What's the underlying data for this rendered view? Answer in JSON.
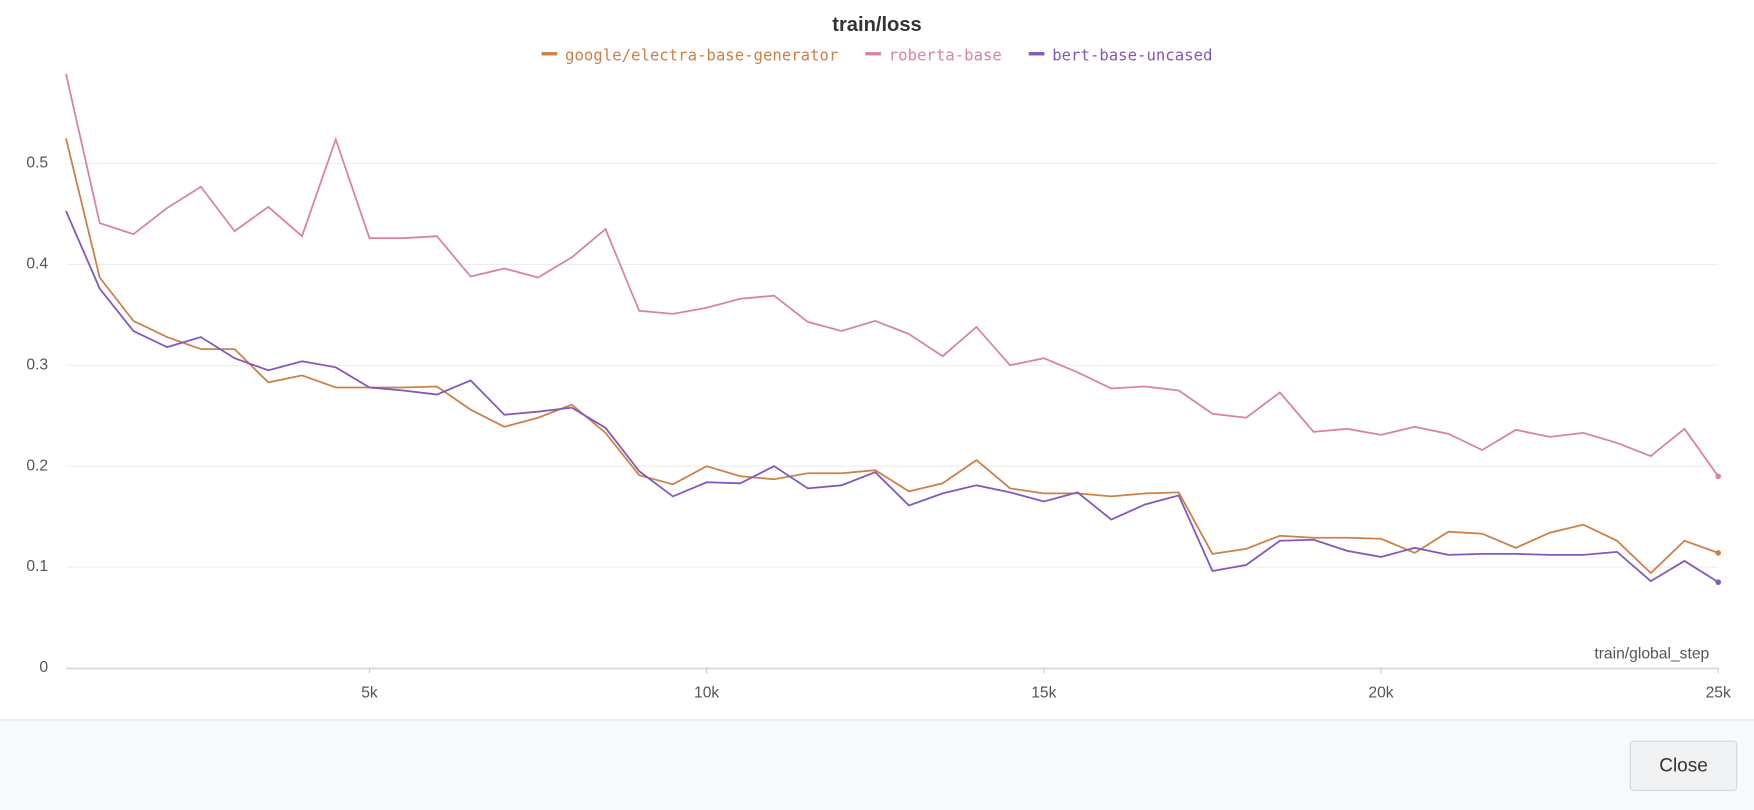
{
  "chart_data": {
    "type": "line",
    "title": "train/loss",
    "x_label": "train/global_step",
    "x": [
      500,
      1000,
      1500,
      2000,
      2500,
      3000,
      3500,
      4000,
      4500,
      5000,
      5500,
      6000,
      6500,
      7000,
      7500,
      8000,
      8500,
      9000,
      9500,
      10000,
      10500,
      11000,
      11500,
      12000,
      12500,
      13000,
      13500,
      14000,
      14500,
      15000,
      15500,
      16000,
      16500,
      17000,
      17500,
      18000,
      18500,
      19000,
      19500,
      20000,
      20500,
      21000,
      21500,
      22000,
      22500,
      23000,
      23500,
      24000,
      24500,
      25000
    ],
    "series": [
      {
        "name": "google/electra-base-generator",
        "color": "#cd8048",
        "values": [
          0.525,
          0.387,
          0.344,
          0.328,
          0.316,
          0.316,
          0.283,
          0.29,
          0.278,
          0.278,
          0.278,
          0.279,
          0.256,
          0.239,
          0.248,
          0.261,
          0.233,
          0.191,
          0.182,
          0.2,
          0.19,
          0.187,
          0.193,
          0.193,
          0.196,
          0.175,
          0.183,
          0.206,
          0.178,
          0.173,
          0.173,
          0.17,
          0.173,
          0.174,
          0.113,
          0.118,
          0.131,
          0.129,
          0.129,
          0.128,
          0.114,
          0.135,
          0.133,
          0.119,
          0.134,
          0.142,
          0.126,
          0.094,
          0.126,
          0.114
        ]
      },
      {
        "name": "roberta-base",
        "color": "#d982a6",
        "values": [
          0.589,
          0.441,
          0.43,
          0.456,
          0.477,
          0.433,
          0.457,
          0.428,
          0.524,
          0.426,
          0.426,
          0.428,
          0.388,
          0.396,
          0.387,
          0.407,
          0.435,
          0.354,
          0.351,
          0.357,
          0.366,
          0.369,
          0.343,
          0.334,
          0.344,
          0.331,
          0.309,
          0.338,
          0.3,
          0.307,
          0.293,
          0.277,
          0.279,
          0.275,
          0.252,
          0.248,
          0.273,
          0.234,
          0.237,
          0.231,
          0.239,
          0.232,
          0.216,
          0.236,
          0.229,
          0.233,
          0.223,
          0.21,
          0.237,
          0.19
        ]
      },
      {
        "name": "bert-base-uncased",
        "color": "#8258b8",
        "values": [
          0.453,
          0.376,
          0.334,
          0.318,
          0.328,
          0.307,
          0.295,
          0.304,
          0.298,
          0.278,
          0.275,
          0.271,
          0.285,
          0.251,
          0.254,
          0.258,
          0.238,
          0.195,
          0.17,
          0.184,
          0.183,
          0.2,
          0.178,
          0.181,
          0.194,
          0.161,
          0.173,
          0.181,
          0.174,
          0.165,
          0.174,
          0.147,
          0.162,
          0.171,
          0.096,
          0.102,
          0.126,
          0.127,
          0.116,
          0.11,
          0.119,
          0.112,
          0.113,
          0.113,
          0.112,
          0.112,
          0.115,
          0.086,
          0.106,
          0.085
        ]
      }
    ],
    "xlim": [
      500,
      25000
    ],
    "ylim": [
      0,
      0.6
    ],
    "xticks": [
      {
        "value": 5000,
        "label": "5k"
      },
      {
        "value": 10000,
        "label": "10k"
      },
      {
        "value": 15000,
        "label": "15k"
      },
      {
        "value": 20000,
        "label": "20k"
      },
      {
        "value": 25000,
        "label": "25k"
      }
    ],
    "yticks": [
      0,
      0.1,
      0.2,
      0.3,
      0.4,
      0.5
    ],
    "grid": true
  },
  "close_button": "Close"
}
